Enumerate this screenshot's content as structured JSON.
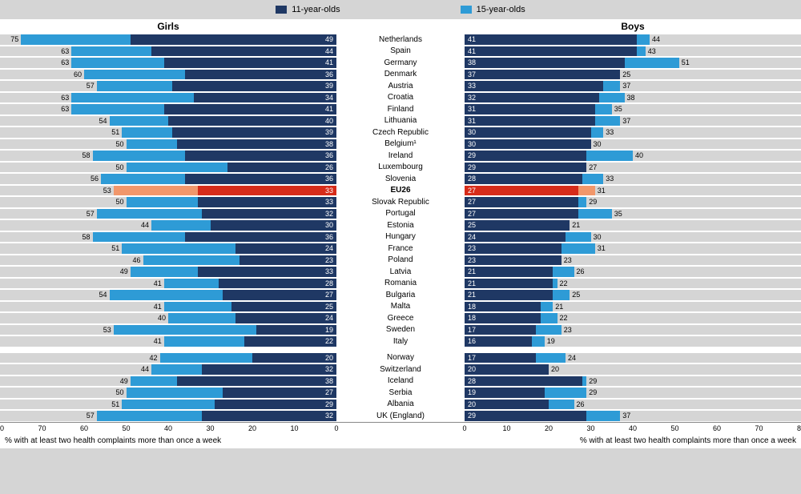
{
  "chart": {
    "type": "bar",
    "title_girls": "Girls",
    "title_boys": "Boys",
    "x_axis_label": "% with at least two health complaints more than once a week",
    "x_max": 80,
    "x_tick_step": 10,
    "background_color": "#d5d5d5",
    "track_color": "#d5d5d5",
    "panel_color": "#ffffff",
    "label_fontsize": 10,
    "legend": {
      "series_11": "11-year-olds",
      "series_15": "15-year-olds",
      "color_11": "#1f3864",
      "color_15": "#2e9bd6",
      "highlight_11": "#d62c1a",
      "highlight_15": "#f1976b"
    },
    "rows": [
      {
        "country": "Netherlands",
        "g11": 49,
        "g15": 75,
        "b11": 41,
        "b15": 44
      },
      {
        "country": "Spain",
        "g11": 44,
        "g15": 63,
        "b11": 41,
        "b15": 43
      },
      {
        "country": "Germany",
        "g11": 41,
        "g15": 63,
        "b11": 38,
        "b15": 51
      },
      {
        "country": "Denmark",
        "g11": 36,
        "g15": 60,
        "b11": 37,
        "b15": 25
      },
      {
        "country": "Austria",
        "g11": 39,
        "g15": 57,
        "b11": 33,
        "b15": 37
      },
      {
        "country": "Croatia",
        "g11": 34,
        "g15": 63,
        "b11": 32,
        "b15": 38
      },
      {
        "country": "Finland",
        "g11": 41,
        "g15": 63,
        "b11": 31,
        "b15": 35
      },
      {
        "country": "Lithuania",
        "g11": 40,
        "g15": 54,
        "b11": 31,
        "b15": 37
      },
      {
        "country": "Czech Republic",
        "g11": 39,
        "g15": 51,
        "b11": 30,
        "b15": 33
      },
      {
        "country": "Belgium¹",
        "g11": 38,
        "g15": 50,
        "b11": 30,
        "b15": 30
      },
      {
        "country": "Ireland",
        "g11": 36,
        "g15": 58,
        "b11": 29,
        "b15": 40
      },
      {
        "country": "Luxembourg",
        "g11": 26,
        "g15": 50,
        "b11": 29,
        "b15": 27
      },
      {
        "country": "Slovenia",
        "g11": 36,
        "g15": 56,
        "b11": 28,
        "b15": 33
      },
      {
        "country": "EU26",
        "g11": 33,
        "g15": 53,
        "b11": 27,
        "b15": 31,
        "highlight": true
      },
      {
        "country": "Slovak Republic",
        "g11": 33,
        "g15": 50,
        "b11": 27,
        "b15": 29
      },
      {
        "country": "Portugal",
        "g11": 32,
        "g15": 57,
        "b11": 27,
        "b15": 35
      },
      {
        "country": "Estonia",
        "g11": 30,
        "g15": 44,
        "b11": 25,
        "b15": 21
      },
      {
        "country": "Hungary",
        "g11": 36,
        "g15": 58,
        "b11": 24,
        "b15": 30
      },
      {
        "country": "France",
        "g11": 24,
        "g15": 51,
        "b11": 23,
        "b15": 31
      },
      {
        "country": "Poland",
        "g11": 23,
        "g15": 46,
        "b11": 23,
        "b15": 23
      },
      {
        "country": "Latvia",
        "g11": 33,
        "g15": 49,
        "b11": 21,
        "b15": 26
      },
      {
        "country": "Romania",
        "g11": 28,
        "g15": 41,
        "b11": 21,
        "b15": 22
      },
      {
        "country": "Bulgaria",
        "g11": 27,
        "g15": 54,
        "b11": 21,
        "b15": 25
      },
      {
        "country": "Malta",
        "g11": 25,
        "g15": 41,
        "b11": 18,
        "b15": 21
      },
      {
        "country": "Greece",
        "g11": 24,
        "g15": 40,
        "b11": 18,
        "b15": 22
      },
      {
        "country": "Sweden",
        "g11": 19,
        "g15": 53,
        "b11": 17,
        "b15": 23
      },
      {
        "country": "Italy",
        "g11": 22,
        "g15": 41,
        "b11": 16,
        "b15": 19
      },
      {
        "gap": true
      },
      {
        "country": "Norway",
        "g11": 20,
        "g15": 42,
        "b11": 17,
        "b15": 24
      },
      {
        "country": "Switzerland",
        "g11": 32,
        "g15": 44,
        "b11": 20,
        "b15": 20
      },
      {
        "country": "Iceland",
        "g11": 38,
        "g15": 49,
        "b11": 28,
        "b15": 29
      },
      {
        "country": "Serbia",
        "g11": 27,
        "g15": 50,
        "b11": 19,
        "b15": 29
      },
      {
        "country": "Albania",
        "g11": 29,
        "g15": 51,
        "b11": 20,
        "b15": 26
      },
      {
        "country": "UK (England)",
        "g11": 32,
        "g15": 57,
        "b11": 29,
        "b15": 37
      }
    ]
  }
}
